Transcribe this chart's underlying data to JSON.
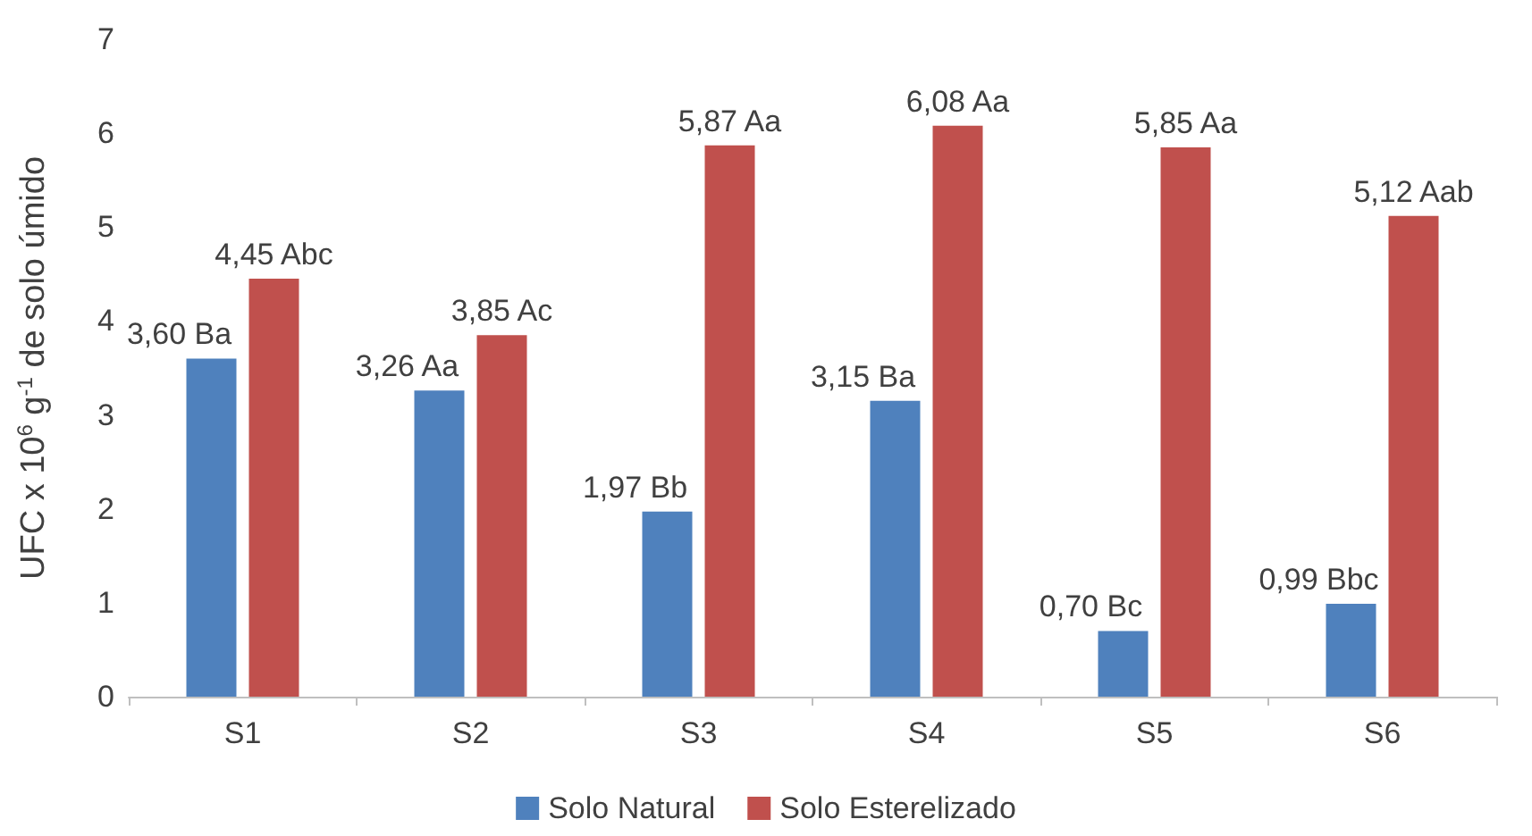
{
  "chart_data": {
    "type": "bar",
    "ylabel": "UFC x 10$^{6}$ g$^{-1}$ de solo úmido",
    "categories": [
      "S1",
      "S2",
      "S3",
      "S4",
      "S5",
      "S6"
    ],
    "series": [
      {
        "name": "Solo Natural",
        "color": "#4f81bd",
        "values": [
          3.6,
          3.26,
          1.97,
          3.15,
          0.7,
          0.99
        ],
        "value_labels": [
          "3,60 Ba",
          "3,26 Aa",
          "1,97 Bb",
          "3,15 Ba",
          "0,70 Bc",
          "0,99 Bbc"
        ]
      },
      {
        "name": "Solo Esterelizado",
        "color": "#c0504d",
        "values": [
          4.45,
          3.85,
          5.87,
          6.08,
          5.85,
          5.12
        ],
        "value_labels": [
          "4,45 Abc",
          "3,85 Ac",
          "5,87 Aa",
          "6,08 Aa",
          "5,85 Aa",
          "5,12 Aab"
        ]
      }
    ],
    "ylim": [
      0,
      7
    ],
    "yticks": [
      0,
      1,
      2,
      3,
      4,
      5,
      6,
      7
    ],
    "grid": false,
    "legend": "bottom"
  }
}
